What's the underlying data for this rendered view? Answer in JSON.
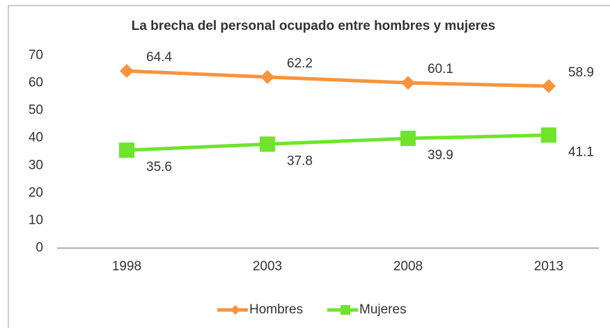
{
  "chart_data": {
    "type": "line",
    "title": "La brecha del personal ocupado entre hombres y mujeres",
    "categories": [
      "1998",
      "2003",
      "2008",
      "2013"
    ],
    "series": [
      {
        "name": "Hombres",
        "color": "#f7943c",
        "marker": "diamond",
        "values": [
          64.4,
          62.2,
          60.1,
          58.9
        ]
      },
      {
        "name": "Mujeres",
        "color": "#6ee52b",
        "marker": "square",
        "values": [
          35.6,
          37.8,
          39.9,
          41.1
        ]
      }
    ],
    "ylim": [
      0,
      70
    ],
    "yticks": [
      0,
      10,
      20,
      30,
      40,
      50,
      60,
      70
    ],
    "grid": false,
    "legend": "bottom"
  }
}
